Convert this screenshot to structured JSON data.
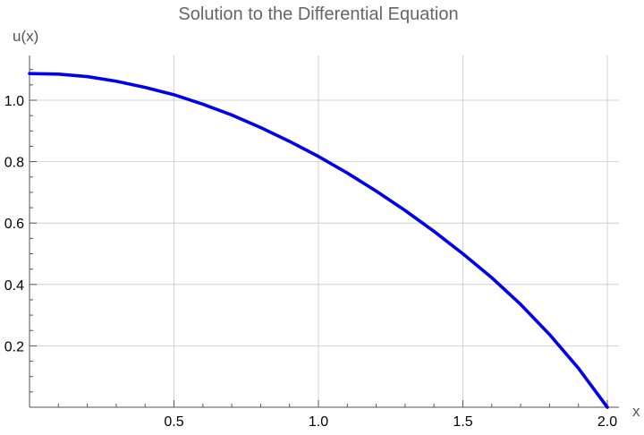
{
  "chart_data": {
    "type": "line",
    "title": "Solution to the Differential Equation",
    "xlabel": "x",
    "ylabel": "u(x)",
    "xlim": [
      0,
      2.0
    ],
    "ylim": [
      0,
      1.15
    ],
    "grid": true,
    "x_ticks": [
      0.5,
      1.0,
      1.5,
      2.0
    ],
    "x_tick_labels": [
      "0.5",
      "1.0",
      "1.5",
      "2.0"
    ],
    "y_ticks": [
      0.2,
      0.4,
      0.6,
      0.8,
      1.0
    ],
    "y_tick_labels": [
      "0.2",
      "0.4",
      "0.6",
      "0.8",
      "1.0"
    ],
    "series": [
      {
        "color": "#0000ee",
        "x": [
          0,
          0.1,
          0.2,
          0.3,
          0.4,
          0.5,
          0.6,
          0.7,
          0.8,
          0.9,
          1.0,
          1.1,
          1.2,
          1.3,
          1.4,
          1.5,
          1.6,
          1.7,
          1.8,
          1.9,
          2.0
        ],
        "y": [
          1.087,
          1.085,
          1.077,
          1.062,
          1.042,
          1.018,
          0.987,
          0.952,
          0.911,
          0.866,
          0.817,
          0.763,
          0.704,
          0.641,
          0.573,
          0.5,
          0.422,
          0.335,
          0.237,
          0.127,
          0.0
        ]
      }
    ]
  }
}
